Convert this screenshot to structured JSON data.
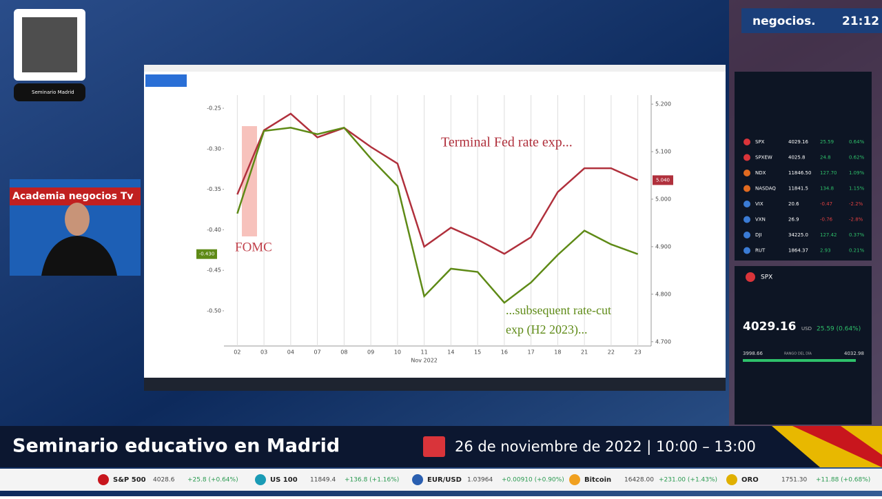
{
  "broadcast": {
    "brand": "negocios.",
    "clock": "21:12",
    "qr_caption": "Seminario Madrid",
    "webcam_banner": "Academia negocios Tv",
    "headline": "Seminario educativo en Madrid",
    "event_date": "26 de noviembre de 2022 | 10:00 – 13:00",
    "ticker": [
      {
        "name": "S&P 500",
        "price": "4028.6",
        "change": "+25.8 (+0.64%)"
      },
      {
        "name": "US 100",
        "price": "11849.4",
        "change": "+136.8 (+1.16%)"
      },
      {
        "name": "EUR/USD",
        "price": "1.03964",
        "change": "+0.00910 (+0.90%)"
      },
      {
        "name": "Bitcoin",
        "price": "16428.00",
        "change": "+231.00 (+1.43%)"
      },
      {
        "name": "ORO",
        "price": "1751.30",
        "change": "+11.88 (+0.68%)"
      }
    ]
  },
  "watchlist": {
    "rows": [
      [
        "SPX",
        "4029.16",
        "25.59",
        "0.64%"
      ],
      [
        "SPXEW",
        "4025.8",
        "24.8",
        "0.62%"
      ],
      [
        "NDX",
        "11846.50",
        "127.70",
        "1.09%"
      ],
      [
        "NASDAQ",
        "11841.5",
        "134.8",
        "1.15%"
      ],
      [
        "VIX",
        "20.6",
        "-0.47",
        "-2.2%"
      ],
      [
        "VXN",
        "26.9",
        "-0.76",
        "-2.8%"
      ],
      [
        "DJI",
        "34225.0",
        "127.42",
        "0.37%"
      ],
      [
        "RUT",
        "1864.37",
        "2.93",
        "0.21%"
      ]
    ],
    "quote": {
      "symbol": "SPX",
      "price": "4029.16",
      "currency": "USD",
      "change": "25.59 (0.64%)",
      "low": "3998.66",
      "range_label": "RANGO DEL DÍA",
      "high": "4032.98"
    }
  },
  "chart_data": {
    "type": "line",
    "x_label": "Nov 2022",
    "event_label": "FOMC",
    "categories": [
      "02",
      "03",
      "04",
      "07",
      "08",
      "09",
      "10",
      "11",
      "14",
      "15",
      "16",
      "17",
      "18",
      "21",
      "22",
      "23"
    ],
    "series": [
      {
        "name": "Terminal Fed rate exp...",
        "color": "#b0303c",
        "axis": "y2",
        "end_label": "5.040",
        "values": [
          5.01,
          5.145,
          5.18,
          5.13,
          5.15,
          5.11,
          5.075,
          4.9,
          4.94,
          4.915,
          4.885,
          4.92,
          5.015,
          5.065,
          5.065,
          5.04
        ]
      },
      {
        "name": "...subsequent rate-cut exp (H2 2023)...",
        "color": "#5e8a16",
        "end_label": "-0.430",
        "values": [
          -0.38,
          -0.278,
          -0.274,
          -0.282,
          -0.274,
          -0.312,
          -0.346,
          -0.482,
          -0.448,
          -0.452,
          -0.49,
          -0.465,
          -0.431,
          -0.401,
          -0.418,
          -0.43
        ]
      }
    ],
    "ylim": [
      -0.5434,
      -0.2338
    ],
    "yticks": [
      -0.25,
      {
        "value": -0.3,
        "label": "-0.30"
      },
      -0.35,
      {
        "value": -0.4,
        "label": "-0.40"
      },
      -0.45,
      {
        "value": -0.5,
        "label": "-0.50"
      }
    ],
    "y2lim": [
      4.691,
      5.219
    ],
    "y2ticks": [
      {
        "value": 4.7,
        "label": "4.700"
      },
      {
        "value": 4.8,
        "label": "4.800"
      },
      {
        "value": 4.9,
        "label": "4.900"
      },
      {
        "value": 5.0,
        "label": "5.000"
      },
      {
        "value": 5.1,
        "label": "5.100"
      },
      {
        "value": 5.2,
        "label": "5.200"
      }
    ],
    "grid": true
  }
}
